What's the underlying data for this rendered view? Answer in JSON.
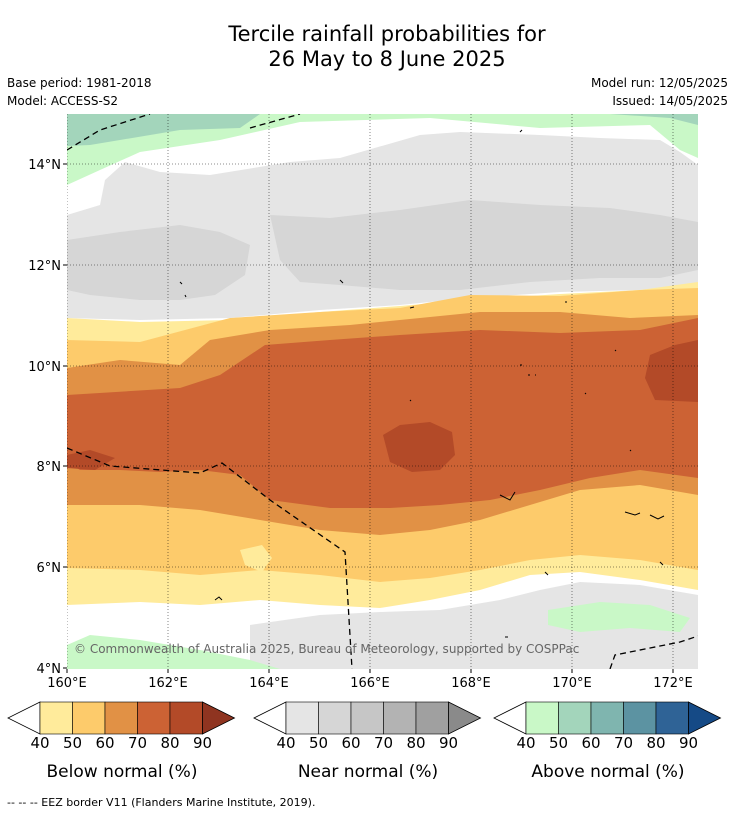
{
  "title_line1": "Tercile rainfall probabilities for",
  "title_line2": "26 May to 8 June 2025",
  "meta": {
    "base_period": "Base period: 1981-2018",
    "model": "Model: ACCESS-S2",
    "model_run": "Model run: 12/05/2025",
    "issued": "Issued: 14/05/2025"
  },
  "copyright": "© Commonwealth of Australia 2025, Bureau of Meteorology, supported by COSPPac",
  "footnote": "--  --  -- EEZ border V11 (Flanders Marine Institute, 2019).",
  "chart_data": {
    "type": "heatmap",
    "x_ticks": [
      "160°E",
      "162°E",
      "164°E",
      "166°E",
      "168°E",
      "170°E",
      "172°E"
    ],
    "y_ticks": [
      "14°N",
      "12°N",
      "10°N",
      "8°N",
      "6°N",
      "4°N"
    ],
    "x_values": [
      160,
      162,
      164,
      166,
      168,
      170,
      172
    ],
    "y_values": [
      14,
      12,
      10,
      8,
      6,
      4
    ],
    "xlim": [
      160,
      172.5
    ],
    "ylim": [
      4,
      15
    ],
    "grid": true,
    "bands": [
      {
        "lat_top": 15.0,
        "lat_bottom": 14.6,
        "category": "above",
        "level": 50
      },
      {
        "lat_top": 14.6,
        "lat_bottom": 13.0,
        "category": "above",
        "level": 40
      },
      {
        "lat_top": 13.0,
        "lat_bottom": 11.3,
        "category": "near",
        "level": 50
      },
      {
        "lat_top": 11.3,
        "lat_bottom": 10.8,
        "category": "below",
        "level": 50
      },
      {
        "lat_top": 10.8,
        "lat_bottom": 10.2,
        "category": "below",
        "level": 60
      },
      {
        "lat_top": 10.2,
        "lat_bottom": 7.5,
        "category": "below",
        "level": 70
      },
      {
        "lat_top": 7.5,
        "lat_bottom": 6.8,
        "category": "below",
        "level": 60
      },
      {
        "lat_top": 6.8,
        "lat_bottom": 5.7,
        "category": "below",
        "level": 50
      },
      {
        "lat_top": 5.7,
        "lat_bottom": 5.2,
        "category": "below",
        "level": 40
      },
      {
        "lat_top": 5.2,
        "lat_bottom": 4.0,
        "category": "near",
        "level": 40
      }
    ],
    "legends": [
      {
        "title": "Below normal (%)",
        "labels": [
          "40",
          "50",
          "60",
          "70",
          "80",
          "90"
        ],
        "colors": [
          "#ffeb9b",
          "#fdcb6b",
          "#e19145",
          "#cc6234",
          "#b34a28",
          "#8f3420"
        ]
      },
      {
        "title": "Near normal (%)",
        "labels": [
          "40",
          "50",
          "60",
          "70",
          "80",
          "90"
        ],
        "colors": [
          "#e5e5e5",
          "#d6d6d6",
          "#c6c6c6",
          "#b3b3b3",
          "#a0a0a0",
          "#8a8a8a"
        ]
      },
      {
        "title": "Above normal (%)",
        "labels": [
          "40",
          "50",
          "60",
          "70",
          "80",
          "90"
        ],
        "colors": [
          "#c9f8c7",
          "#a3d5bb",
          "#7fb5af",
          "#5c93a2",
          "#2f6396",
          "#154a86"
        ]
      }
    ]
  }
}
